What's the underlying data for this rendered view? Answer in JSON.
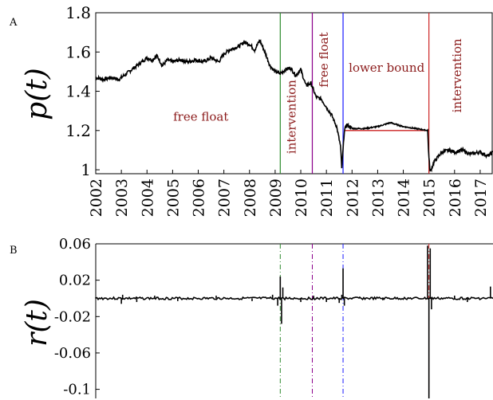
{
  "chart_data": [
    {
      "panel_label": "A",
      "type": "line",
      "ylabel": "p(t)",
      "xlim": [
        2002,
        2017.5
      ],
      "ylim": [
        0.98,
        1.8
      ],
      "yticks": [
        "1",
        "1.2",
        "1.4",
        "1.6",
        "1.8"
      ],
      "xticks": [
        "2002",
        "2003",
        "2004",
        "2005",
        "2006",
        "2007",
        "2008",
        "2009",
        "2010",
        "2011",
        "2012",
        "2013",
        "2014",
        "2015",
        "2016",
        "2017"
      ],
      "series": [
        {
          "x": [
            2002.0,
            2002.3,
            2002.6,
            2002.9,
            2003.2,
            2003.5,
            2003.8,
            2004.0,
            2004.2,
            2004.4,
            2004.6,
            2004.8,
            2005.0,
            2005.3,
            2005.6,
            2005.9,
            2006.2,
            2006.5,
            2006.8,
            2007.0,
            2007.2,
            2007.4,
            2007.6,
            2007.8,
            2008.0,
            2008.2,
            2008.4,
            2008.6,
            2008.8,
            2009.0,
            2009.2,
            2009.4,
            2009.6,
            2009.8,
            2010.0,
            2010.2,
            2010.4,
            2010.6,
            2010.8,
            2011.0,
            2011.2,
            2011.4,
            2011.55,
            2011.6,
            2011.65,
            2011.7,
            2011.8,
            2012.0,
            2012.5,
            2013.0,
            2013.5,
            2014.0,
            2014.5,
            2014.95,
            2015.0,
            2015.05,
            2015.2,
            2015.5,
            2015.8,
            2016.0,
            2016.3,
            2016.6,
            2017.0,
            2017.3,
            2017.5
          ],
          "y": [
            1.47,
            1.46,
            1.47,
            1.46,
            1.49,
            1.52,
            1.55,
            1.57,
            1.56,
            1.58,
            1.53,
            1.56,
            1.55,
            1.56,
            1.55,
            1.56,
            1.55,
            1.57,
            1.55,
            1.59,
            1.61,
            1.62,
            1.63,
            1.65,
            1.64,
            1.61,
            1.66,
            1.6,
            1.53,
            1.5,
            1.49,
            1.51,
            1.52,
            1.48,
            1.51,
            1.43,
            1.44,
            1.37,
            1.36,
            1.32,
            1.28,
            1.22,
            1.12,
            1.01,
            1.1,
            1.2,
            1.23,
            1.21,
            1.21,
            1.22,
            1.24,
            1.22,
            1.21,
            1.2,
            1.06,
            0.99,
            1.04,
            1.09,
            1.1,
            1.09,
            1.1,
            1.08,
            1.09,
            1.07,
            1.09
          ]
        }
      ],
      "lower_bound": {
        "x": [
          2011.7,
          2015.0
        ],
        "y": 1.2
      },
      "events": [
        {
          "x": 2009.2,
          "color": "#2e8b2e"
        },
        {
          "x": 2010.45,
          "color": "#8b008b"
        },
        {
          "x": 2011.65,
          "color": "#1a1aff"
        },
        {
          "x": 2015.0,
          "color": "#cc2222"
        }
      ],
      "annotations": [
        {
          "text": "free float",
          "x": 2006.1,
          "y": 1.25,
          "rotate": 0
        },
        {
          "text": "intervention",
          "x": 2009.8,
          "y": 1.27,
          "rotate": -90
        },
        {
          "text": "free float",
          "x": 2011.05,
          "y": 1.56,
          "rotate": -90
        },
        {
          "text": "lower bound",
          "x": 2013.35,
          "y": 1.5,
          "rotate": 0
        },
        {
          "text": "intervention",
          "x": 2016.25,
          "y": 1.48,
          "rotate": -90
        }
      ]
    },
    {
      "panel_label": "B",
      "type": "line",
      "ylabel": "r(t)",
      "xlim": [
        2002,
        2017.5
      ],
      "ylim": [
        -0.11,
        0.06
      ],
      "yticks": [
        "0.06",
        "0.02",
        "-0.02",
        "-0.06",
        "-0.1"
      ],
      "ytick_values": [
        0.06,
        0.02,
        -0.02,
        -0.06,
        -0.1
      ],
      "spikes": {
        "x": [
          2003.0,
          2003.05,
          2003.6,
          2004.3,
          2005.2,
          2006.7,
          2008.1,
          2008.9,
          2009.1,
          2009.2,
          2009.25,
          2009.3,
          2010.0,
          2010.5,
          2011.0,
          2011.5,
          2011.6,
          2011.65,
          2011.7,
          2012.3,
          2013.2,
          2014.4,
          2014.95,
          2015.0,
          2015.05,
          2015.1,
          2016.0,
          2016.5,
          2017.4
        ],
        "y": [
          -0.006,
          0.004,
          -0.004,
          0.003,
          -0.003,
          0.003,
          -0.003,
          0.004,
          -0.008,
          0.024,
          -0.028,
          0.012,
          -0.004,
          0.003,
          -0.004,
          -0.005,
          0.004,
          0.033,
          -0.008,
          0.002,
          -0.002,
          0.001,
          0.058,
          -0.11,
          0.055,
          -0.012,
          0.003,
          -0.004,
          0.013
        ]
      },
      "events": [
        {
          "x": 2009.2,
          "color": "#2e8b2e",
          "dash": true
        },
        {
          "x": 2010.45,
          "color": "#8b008b",
          "dash": true
        },
        {
          "x": 2011.65,
          "color": "#1a1aff",
          "dash": true
        },
        {
          "x": 2015.0,
          "color": "#cc2222",
          "dash": true
        }
      ]
    }
  ]
}
